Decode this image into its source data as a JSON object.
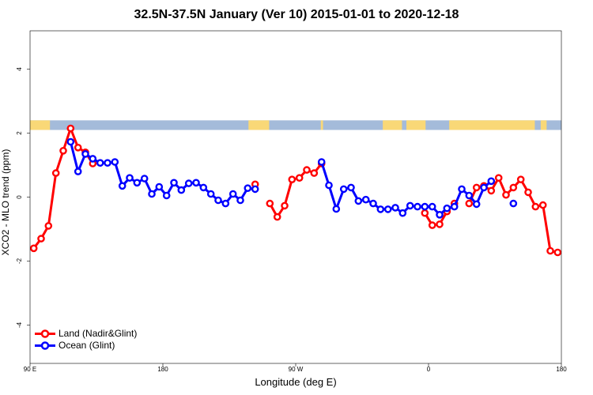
{
  "chart_data": {
    "type": "line",
    "title": "32.5N-37.5N January (Ver 10)   2015-01-01 to 2020-12-18",
    "xlabel": "Longitude (deg E)",
    "ylabel": "XCO2 - MLO trend (ppm)",
    "xlim": [
      90,
      450
    ],
    "ylim": [
      -5.2,
      5.2
    ],
    "x_ticks": [
      {
        "value": 90,
        "label": "90 E"
      },
      {
        "value": 180,
        "label": "180"
      },
      {
        "value": 270,
        "label": "90 W"
      },
      {
        "value": 360,
        "label": "0"
      },
      {
        "value": 450,
        "label": "180"
      }
    ],
    "y_ticks": [
      -4,
      -2,
      0,
      2,
      4
    ],
    "grid": false,
    "legend_position": "bottom-left",
    "land_strip": {
      "ocean_color": "#A4BBDA",
      "land_color": "#F9D877",
      "ymin": 2.1,
      "ymax": 2.4,
      "land_segments": [
        [
          90,
          103.5
        ],
        [
          238,
          252
        ],
        [
          287,
          288.5
        ],
        [
          329,
          342
        ],
        [
          345,
          358
        ],
        [
          374,
          432
        ],
        [
          436,
          440
        ]
      ]
    },
    "series": [
      {
        "name": "Land (Nadir&Glint)",
        "color": "#FF0000",
        "points": [
          [
            92.5,
            -1.6
          ],
          [
            97.5,
            -1.3
          ],
          [
            102.5,
            -0.9
          ],
          [
            107.5,
            0.75
          ],
          [
            112.5,
            1.45
          ],
          [
            117.5,
            2.15
          ],
          [
            122.5,
            1.55
          ],
          [
            127.5,
            1.4
          ],
          [
            132.5,
            1.05
          ],
          null,
          [
            242.5,
            0.4
          ],
          null,
          [
            252.5,
            -0.2
          ],
          [
            257.5,
            -0.62
          ],
          [
            262.5,
            -0.27
          ],
          [
            267.5,
            0.55
          ],
          [
            272.5,
            0.6
          ],
          [
            277.5,
            0.85
          ],
          [
            282.5,
            0.75
          ],
          [
            287.5,
            1.05
          ],
          null,
          [
            357.5,
            -0.5
          ],
          [
            362.5,
            -0.88
          ],
          [
            367.5,
            -0.85
          ],
          [
            372.5,
            -0.45
          ],
          [
            377.5,
            -0.2
          ],
          null,
          [
            387.5,
            -0.2
          ],
          [
            392.5,
            0.3
          ],
          [
            397.5,
            0.35
          ],
          [
            402.5,
            0.2
          ],
          [
            407.5,
            0.6
          ],
          [
            412.5,
            0.07
          ],
          [
            417.5,
            0.3
          ],
          [
            422.5,
            0.55
          ],
          [
            427.5,
            0.15
          ],
          [
            432.5,
            -0.3
          ],
          [
            437.5,
            -0.25
          ],
          [
            442.5,
            -1.68
          ],
          [
            447.5,
            -1.73
          ],
          [
            452.5,
            -1.73
          ],
          [
            457.5,
            -1.6
          ],
          [
            462.5,
            -1.3
          ],
          [
            467.5,
            -0.9
          ],
          [
            472.5,
            0.75
          ],
          [
            477.5,
            1.45
          ],
          [
            482.5,
            2.15
          ],
          [
            487.5,
            1.55
          ],
          [
            492.5,
            1.4
          ],
          [
            497.5,
            1.05
          ]
        ]
      },
      {
        "name": "Ocean (Glint)",
        "color": "#0000FF",
        "points": [
          [
            117.5,
            1.73
          ],
          [
            122.5,
            0.8
          ],
          [
            127.5,
            1.35
          ],
          [
            132.5,
            1.2
          ],
          [
            137.5,
            1.07
          ],
          [
            142.5,
            1.07
          ],
          [
            147.5,
            1.1
          ],
          [
            152.5,
            0.35
          ],
          [
            157.5,
            0.6
          ],
          [
            162.5,
            0.45
          ],
          [
            167.5,
            0.58
          ],
          [
            172.5,
            0.1
          ],
          [
            177.5,
            0.32
          ],
          [
            182.5,
            0.05
          ],
          [
            187.5,
            0.45
          ],
          [
            192.5,
            0.22
          ],
          [
            197.5,
            0.43
          ],
          [
            202.5,
            0.45
          ],
          [
            207.5,
            0.3
          ],
          [
            212.5,
            0.1
          ],
          [
            217.5,
            -0.1
          ],
          [
            222.5,
            -0.2
          ],
          [
            227.5,
            0.1
          ],
          [
            232.5,
            -0.1
          ],
          [
            237.5,
            0.28
          ],
          [
            242.5,
            0.25
          ],
          null,
          [
            287.5,
            1.1
          ],
          [
            292.5,
            0.37
          ],
          [
            297.5,
            -0.37
          ],
          [
            302.5,
            0.25
          ],
          [
            307.5,
            0.3
          ],
          [
            312.5,
            -0.12
          ],
          [
            317.5,
            -0.08
          ],
          [
            322.5,
            -0.2
          ],
          [
            327.5,
            -0.38
          ],
          [
            332.5,
            -0.38
          ],
          [
            337.5,
            -0.33
          ],
          [
            342.5,
            -0.5
          ],
          [
            347.5,
            -0.27
          ],
          [
            352.5,
            -0.3
          ],
          [
            357.5,
            -0.3
          ],
          [
            362.5,
            -0.3
          ],
          [
            367.5,
            -0.55
          ],
          [
            372.5,
            -0.35
          ],
          [
            377.5,
            -0.3
          ],
          [
            382.5,
            0.25
          ],
          [
            387.5,
            0.05
          ],
          [
            392.5,
            -0.22
          ],
          [
            397.5,
            0.3
          ],
          [
            402.5,
            0.5
          ],
          null,
          [
            417.5,
            -0.2
          ],
          null,
          [
            482.5,
            1.73
          ],
          [
            487.5,
            0.8
          ],
          [
            492.5,
            1.35
          ],
          [
            497.5,
            1.2
          ],
          [
            502.5,
            1.07
          ],
          [
            507.5,
            1.07
          ],
          [
            512.5,
            1.1
          ],
          [
            517.5,
            0.35
          ],
          [
            522.5,
            0.6
          ],
          [
            527.5,
            0.45
          ],
          [
            532.5,
            0.58
          ],
          [
            537.5,
            0.1
          ],
          [
            542.5,
            0.32
          ]
        ]
      }
    ]
  }
}
